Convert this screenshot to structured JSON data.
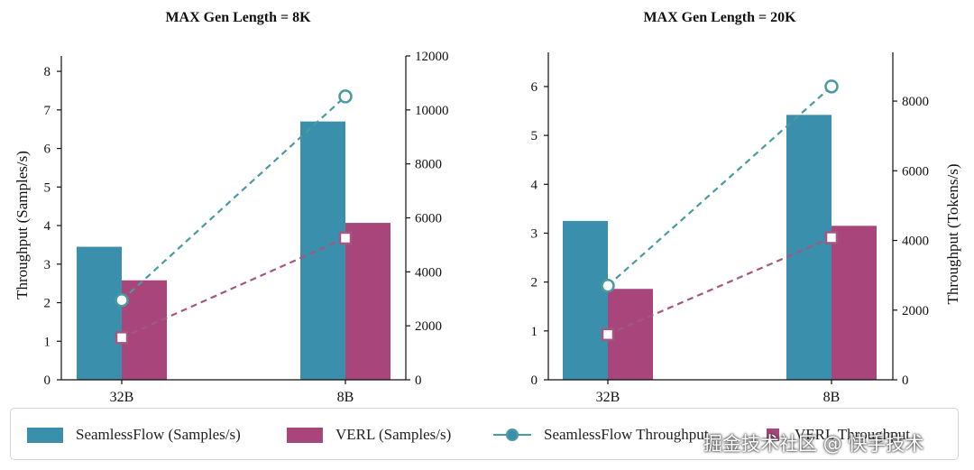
{
  "colors": {
    "seamless": "#3a8fad",
    "verl": "#a8457a",
    "seamless_line": "#4a9aa2",
    "verl_line": "#a4577f"
  },
  "chart_data": [
    {
      "type": "bar",
      "title": "MAX Gen Length = 8K",
      "categories": [
        "32B",
        "8B"
      ],
      "ylabel": "Throughput (Samples/s)",
      "ylabel_right": "",
      "ylim": [
        0,
        8.4
      ],
      "yticks": [
        "0",
        "1",
        "2",
        "3",
        "4",
        "5",
        "6",
        "7",
        "8"
      ],
      "y2lim": [
        0,
        12000
      ],
      "y2ticks": [
        "0",
        "2000",
        "4000",
        "6000",
        "8000",
        "10000",
        "12000"
      ],
      "series": [
        {
          "name": "SeamlessFlow (Samples/s)",
          "kind": "bar",
          "axis": "left",
          "values": [
            3.45,
            6.7
          ]
        },
        {
          "name": "VERL (Samples/s)",
          "kind": "bar",
          "axis": "left",
          "values": [
            2.58,
            4.07
          ]
        }
      ],
      "line_series": [
        {
          "name": "SeamlessFlow Throughput",
          "axis": "right",
          "marker": "circle",
          "values": [
            2950,
            10500
          ]
        },
        {
          "name": "VERL Throughput",
          "axis": "right",
          "marker": "square",
          "values": [
            1560,
            5250
          ]
        }
      ]
    },
    {
      "type": "bar",
      "title": "MAX Gen Length = 20K",
      "categories": [
        "32B",
        "8B"
      ],
      "ylabel": "",
      "ylabel_right": "Throughput (Tokens/s)",
      "ylim": [
        0,
        6.7
      ],
      "yticks": [
        "0",
        "1",
        "2",
        "3",
        "4",
        "5",
        "6"
      ],
      "y2lim": [
        0,
        9400
      ],
      "y2ticks": [
        "0",
        "2000",
        "4000",
        "6000",
        "8000"
      ],
      "series": [
        {
          "name": "SeamlessFlow (Samples/s)",
          "kind": "bar",
          "axis": "left",
          "values": [
            3.25,
            5.42
          ]
        },
        {
          "name": "VERL (Samples/s)",
          "kind": "bar",
          "axis": "left",
          "values": [
            1.86,
            3.15
          ]
        }
      ],
      "line_series": [
        {
          "name": "SeamlessFlow Throughput",
          "axis": "right",
          "marker": "circle",
          "values": [
            2700,
            8420
          ]
        },
        {
          "name": "VERL Throughput",
          "axis": "right",
          "marker": "square",
          "values": [
            1300,
            4080
          ]
        }
      ]
    }
  ],
  "legend": {
    "items": [
      {
        "label": "SeamlessFlow (Samples/s)"
      },
      {
        "label": "VERL (Samples/s)"
      },
      {
        "label": "SeamlessFlow Throughput"
      },
      {
        "label": "VERL Throughput"
      }
    ]
  },
  "watermark": "掘金技术社区 @ 快手技术"
}
